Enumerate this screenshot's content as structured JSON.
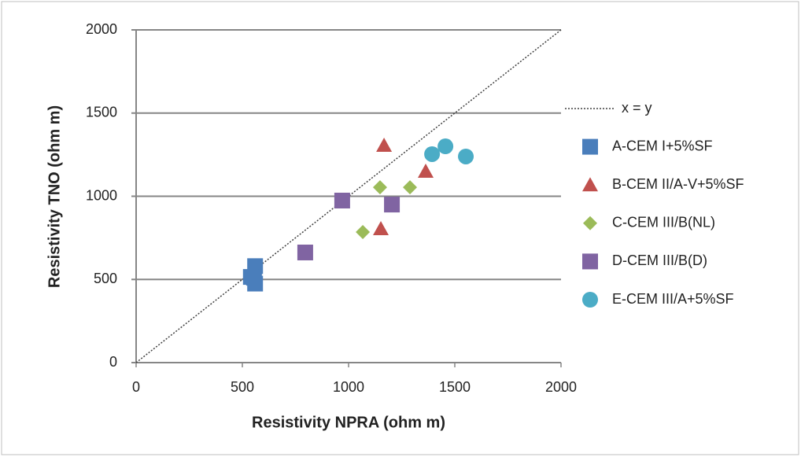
{
  "chart_data": {
    "type": "scatter",
    "xlabel": "Resistivity NPRA   (ohm m)",
    "ylabel": "Resistivity TNO   (ohm m)",
    "xlim": [
      0,
      2000
    ],
    "ylim": [
      0,
      2000
    ],
    "xticks": [
      0,
      500,
      1000,
      1500,
      2000
    ],
    "yticks": [
      0,
      500,
      1000,
      1500,
      2000
    ],
    "grid": true,
    "legend": "right",
    "series": [
      {
        "name": "x = y",
        "color": "#404040",
        "marker": "dotted-line",
        "x": [
          0,
          2000
        ],
        "values": [
          0,
          2000
        ]
      },
      {
        "name": "A-CEM I+5%SF",
        "color": "#4a7ebb",
        "marker": "square",
        "x": [
          560,
          540,
          560,
          555
        ],
        "values": [
          580,
          515,
          475,
          510
        ]
      },
      {
        "name": "B-CEM II/A-V+5%SF",
        "color": "#c0504d",
        "marker": "triangle",
        "x": [
          1167,
          1363,
          1152
        ],
        "values": [
          1305,
          1149,
          804
        ]
      },
      {
        "name": "C-CEM III/B(NL)",
        "color": "#9bbb59",
        "marker": "diamond",
        "x": [
          1148,
          1289,
          1067
        ],
        "values": [
          1054,
          1054,
          785
        ]
      },
      {
        "name": "D-CEM III/B(D)",
        "color": "#8064a2",
        "marker": "square",
        "x": [
          970,
          1204,
          796
        ],
        "values": [
          974,
          950,
          662
        ]
      },
      {
        "name": "E-CEM III/A+5%SF",
        "color": "#4bacc6",
        "marker": "circle",
        "x": [
          1393,
          1456,
          1552
        ],
        "values": [
          1253,
          1300,
          1239
        ]
      }
    ]
  }
}
